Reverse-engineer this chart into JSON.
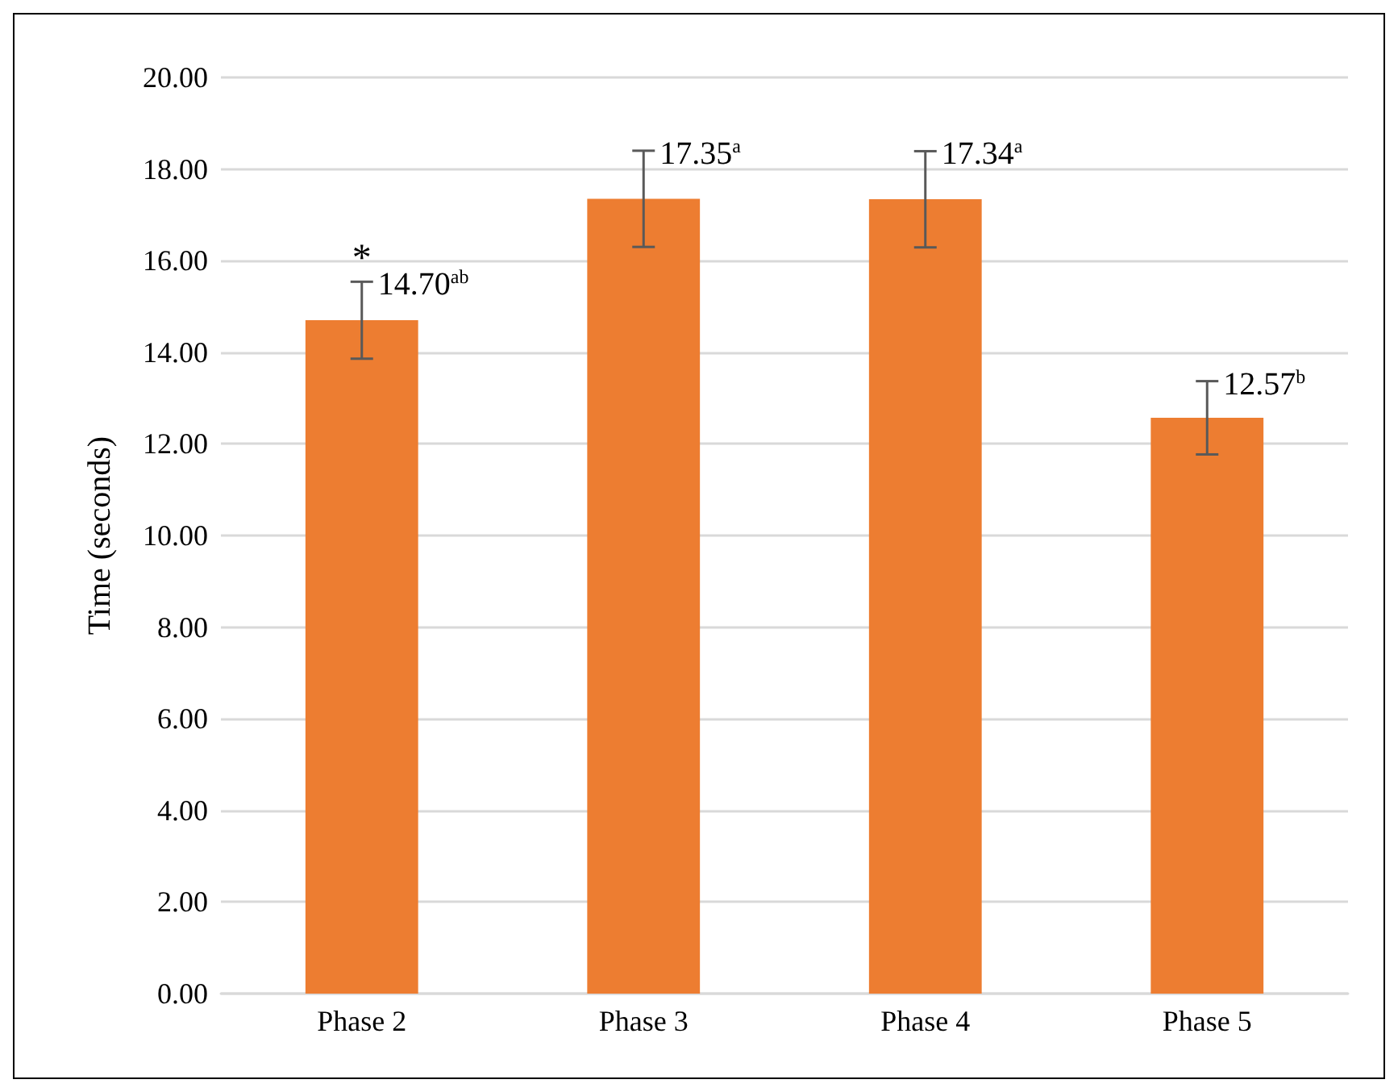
{
  "chart_data": {
    "type": "bar",
    "ylabel": "Time (seconds)",
    "categories": [
      "Phase 2",
      "Phase 3",
      "Phase 4",
      "Phase 5"
    ],
    "values": [
      14.7,
      17.35,
      17.34,
      12.57
    ],
    "color": "#ed7d31",
    "errors": [
      0.84,
      1.05,
      1.05,
      0.8
    ],
    "value_labels": [
      "14.70$^{ab}$",
      "17.35$^{a}$",
      "17.34$^{a}$",
      "12.57$^{b}$"
    ],
    "annotations": [
      "*"
    ],
    "ylim": [
      0,
      20
    ],
    "yticks": [
      {
        "value": 0,
        "label": "0.00"
      },
      {
        "value": 2,
        "label": "2.00"
      },
      {
        "value": 4,
        "label": "4.00"
      },
      {
        "value": 6,
        "label": "6.00"
      },
      {
        "value": 8,
        "label": "8.00"
      },
      {
        "value": 10,
        "label": "10.00"
      },
      {
        "value": 12,
        "label": "12.00"
      },
      {
        "value": 14,
        "label": "14.00"
      },
      {
        "value": 16,
        "label": "16.00"
      },
      {
        "value": 18,
        "label": "18.00"
      },
      {
        "value": 20,
        "label": "20.00"
      }
    ],
    "grid": "y"
  }
}
